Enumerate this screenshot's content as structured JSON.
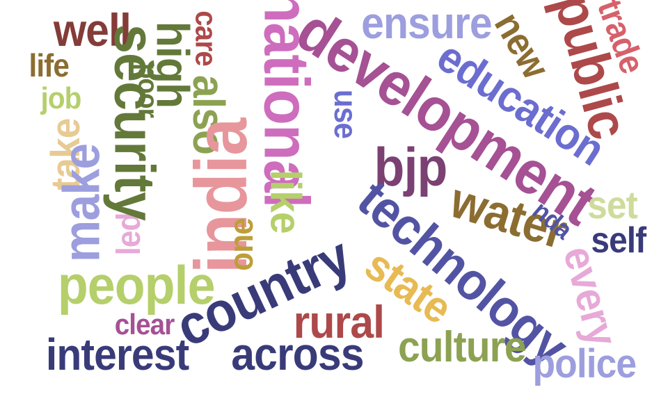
{
  "words": [
    {
      "text": "well",
      "color": "#843c39"
    },
    {
      "text": "life",
      "color": "#8c6d31"
    },
    {
      "text": "job",
      "color": "#b5cf6b"
    },
    {
      "text": "take",
      "color": "#e7cb94"
    },
    {
      "text": "make",
      "color": "#9c9ede"
    },
    {
      "text": "led",
      "color": "#e7a9d8"
    },
    {
      "text": "people",
      "color": "#b5cf6b"
    },
    {
      "text": "clear",
      "color": "#a55194"
    },
    {
      "text": "interest",
      "color": "#393b79"
    },
    {
      "text": "high",
      "color": "#637939"
    },
    {
      "text": "security",
      "color": "#637939"
    },
    {
      "text": "poor",
      "color": "#637939"
    },
    {
      "text": "care",
      "color": "#ad494a"
    },
    {
      "text": "also",
      "color": "#8ca252"
    },
    {
      "text": "national",
      "color": "#ce6dbd"
    },
    {
      "text": "india",
      "color": "#e7969c"
    },
    {
      "text": "like",
      "color": "#b5cf6b"
    },
    {
      "text": "one",
      "color": "#bd9e39"
    },
    {
      "text": "country",
      "color": "#393b79"
    },
    {
      "text": "across",
      "color": "#393b79"
    },
    {
      "text": "rural",
      "color": "#ad494a"
    },
    {
      "text": "development",
      "color": "#a55194"
    },
    {
      "text": "ensure",
      "color": "#9c9ede"
    },
    {
      "text": "use",
      "color": "#6b6ecf"
    },
    {
      "text": "education",
      "color": "#6b6ecf"
    },
    {
      "text": "bjp",
      "color": "#7b4173"
    },
    {
      "text": "technology",
      "color": "#5254a3"
    },
    {
      "text": "state",
      "color": "#e7ba52"
    },
    {
      "text": "water",
      "color": "#8c6d31"
    },
    {
      "text": "new",
      "color": "#8c6d31"
    },
    {
      "text": "public",
      "color": "#ad494a"
    },
    {
      "text": "trade",
      "color": "#d6616b"
    },
    {
      "text": "nda",
      "color": "#5254a3"
    },
    {
      "text": "set",
      "color": "#cedb9c"
    },
    {
      "text": "self",
      "color": "#393b79"
    },
    {
      "text": "every",
      "color": "#e7a9d8"
    },
    {
      "text": "culture",
      "color": "#8ca252"
    },
    {
      "text": "police",
      "color": "#9c9ede"
    }
  ]
}
